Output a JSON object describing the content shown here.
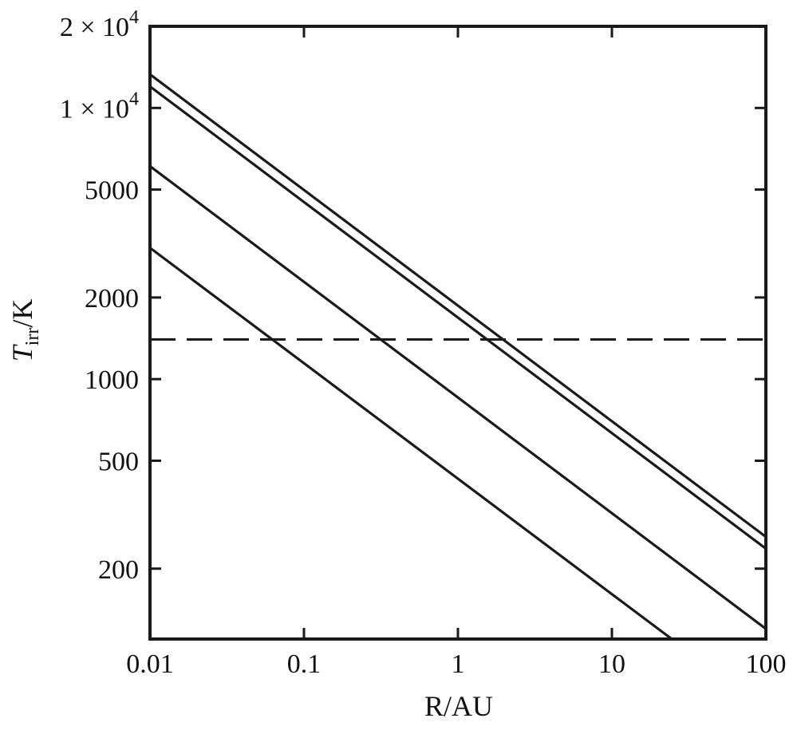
{
  "chart_data": {
    "type": "line",
    "xlabel": "R/AU",
    "ylabel_main": "T",
    "ylabel_sub": "irr",
    "ylabel_unit": "/K",
    "xscale": "log",
    "yscale": "log",
    "xlim": [
      0.01,
      100
    ],
    "ylim": [
      110,
      20000
    ],
    "grid": false,
    "x_ticks": [
      {
        "value": 0.01,
        "label": "0.01"
      },
      {
        "value": 0.1,
        "label": "0.1"
      },
      {
        "value": 1,
        "label": "1"
      },
      {
        "value": 10,
        "label": "10"
      },
      {
        "value": 100,
        "label": "100"
      }
    ],
    "y_ticks": [
      {
        "value": 200,
        "label": "200"
      },
      {
        "value": 500,
        "label": "500"
      },
      {
        "value": 1000,
        "label": "1000"
      },
      {
        "value": 2000,
        "label": "2000"
      },
      {
        "value": 5000,
        "label": "5000"
      },
      {
        "value": 10000,
        "label": "1 × 10",
        "exponent": "4"
      },
      {
        "value": 20000,
        "label": "2 × 10",
        "exponent": "4"
      }
    ],
    "series": [
      {
        "x": [
          0.01,
          100
        ],
        "y": [
          13300,
          262
        ],
        "style": "solid"
      },
      {
        "x": [
          0.01,
          100
        ],
        "y": [
          12000,
          237
        ],
        "style": "solid"
      },
      {
        "x": [
          0.01,
          100
        ],
        "y": [
          6100,
          120
        ],
        "style": "solid"
      },
      {
        "x": [
          0.01,
          24.5
        ],
        "y": [
          3050,
          110
        ],
        "style": "solid"
      }
    ],
    "reference_lines": [
      {
        "orientation": "horizontal",
        "y": 1400,
        "style": "dashed"
      }
    ]
  }
}
